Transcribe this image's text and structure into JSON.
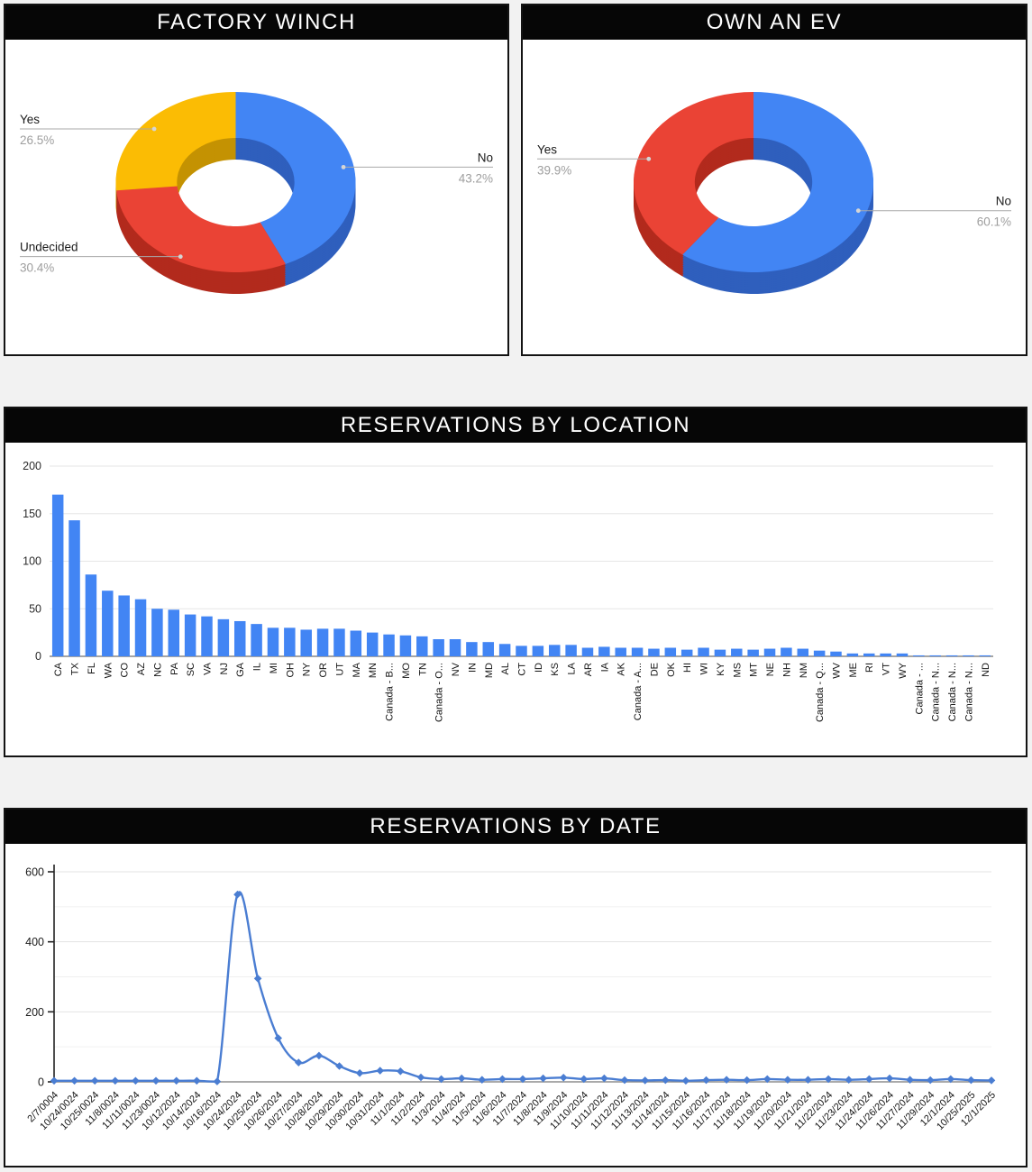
{
  "chart_data": [
    {
      "type": "pie",
      "style": "3d-donut",
      "title": "FACTORY WINCH",
      "start": "12-oclock",
      "direction": "clockwise",
      "legend": "callouts",
      "slices": [
        {
          "label": "No",
          "value": 43.2,
          "display": "43.2%",
          "color": "#4285f4",
          "color_dark": "#2f5fbd",
          "callout": "right"
        },
        {
          "label": "Undecided",
          "value": 30.4,
          "display": "30.4%",
          "color": "#ea4335",
          "color_dark": "#b22a1d",
          "callout": "left"
        },
        {
          "label": "Yes",
          "value": 26.5,
          "display": "26.5%",
          "color": "#fbbc04",
          "color_dark": "#c49202",
          "callout": "left"
        }
      ]
    },
    {
      "type": "pie",
      "style": "3d-donut",
      "title": "OWN AN EV",
      "start": "12-oclock",
      "direction": "clockwise",
      "legend": "callouts",
      "slices": [
        {
          "label": "No",
          "value": 60.1,
          "display": "60.1%",
          "color": "#4285f4",
          "color_dark": "#2f5fbd",
          "callout": "right"
        },
        {
          "label": "Yes",
          "value": 39.9,
          "display": "39.9%",
          "color": "#ea4335",
          "color_dark": "#b22a1d",
          "callout": "left"
        }
      ]
    },
    {
      "type": "bar",
      "title": "RESERVATIONS BY LOCATION",
      "xlabel": "",
      "ylabel": "",
      "ylim": [
        0,
        200
      ],
      "yticks": [
        0,
        50,
        100,
        150,
        200
      ],
      "grid": true,
      "bar_color": "#4285f4",
      "categories": [
        "CA",
        "TX",
        "FL",
        "WA",
        "CO",
        "AZ",
        "NC",
        "PA",
        "SC",
        "VA",
        "NJ",
        "GA",
        "IL",
        "MI",
        "OH",
        "NY",
        "OR",
        "UT",
        "MA",
        "MN",
        "Canada - B...",
        "MO",
        "TN",
        "Canada - O...",
        "NV",
        "IN",
        "MD",
        "AL",
        "CT",
        "ID",
        "KS",
        "LA",
        "AR",
        "IA",
        "AK",
        "Canada - A...",
        "DE",
        "OK",
        "HI",
        "WI",
        "KY",
        "MS",
        "MT",
        "NE",
        "NH",
        "NM",
        "Canada - Q...",
        "WV",
        "ME",
        "RI",
        "VT",
        "WY",
        "Canada - ...",
        "Canada - N...",
        "Canada - N...",
        "Canada - N...",
        "ND"
      ],
      "values": [
        170,
        143,
        86,
        69,
        64,
        60,
        50,
        49,
        44,
        42,
        39,
        37,
        34,
        30,
        30,
        28,
        29,
        29,
        27,
        25,
        23,
        22,
        21,
        18,
        18,
        15,
        15,
        13,
        11,
        11,
        12,
        12,
        9,
        10,
        9,
        9,
        8,
        9,
        7,
        9,
        7,
        8,
        7,
        8,
        9,
        8,
        6,
        5,
        3,
        3,
        3,
        3,
        1,
        1,
        1,
        1,
        1
      ]
    },
    {
      "type": "line",
      "title": "RESERVATIONS BY DATE",
      "xlabel": "",
      "ylabel": "",
      "ylim": [
        0,
        600
      ],
      "yticks": [
        0,
        200,
        400,
        600
      ],
      "grid_step": 100,
      "line_color": "#4a7dd2",
      "marker": "diamond",
      "x": [
        "2/7/0004",
        "10/24/0024",
        "10/25/0024",
        "11/8/0024",
        "11/11/0024",
        "11/23/0024",
        "10/12/2024",
        "10/14/2024",
        "10/16/2024",
        "10/24/2024",
        "10/25/2024",
        "10/26/2024",
        "10/27/2024",
        "10/28/2024",
        "10/29/2024",
        "10/30/2024",
        "10/31/2024",
        "11/1/2024",
        "11/2/2024",
        "11/3/2024",
        "11/4/2024",
        "11/5/2024",
        "11/6/2024",
        "11/7/2024",
        "11/8/2024",
        "11/9/2024",
        "11/10/2024",
        "11/11/2024",
        "11/12/2024",
        "11/13/2024",
        "11/14/2024",
        "11/15/2024",
        "11/16/2024",
        "11/17/2024",
        "11/18/2024",
        "11/19/2024",
        "11/20/2024",
        "11/21/2024",
        "11/22/2024",
        "11/23/2024",
        "11/24/2024",
        "11/26/2024",
        "11/27/2024",
        "11/29/2024",
        "12/1/2024",
        "10/25/2025",
        "12/1/2025"
      ],
      "values": [
        3,
        3,
        3,
        3,
        3,
        3,
        3,
        3,
        1,
        535,
        295,
        125,
        55,
        75,
        45,
        25,
        32,
        30,
        13,
        8,
        10,
        6,
        8,
        8,
        10,
        12,
        8,
        10,
        5,
        4,
        5,
        3,
        5,
        6,
        5,
        8,
        6,
        6,
        8,
        6,
        8,
        10,
        6,
        5,
        8,
        5,
        4
      ]
    }
  ]
}
